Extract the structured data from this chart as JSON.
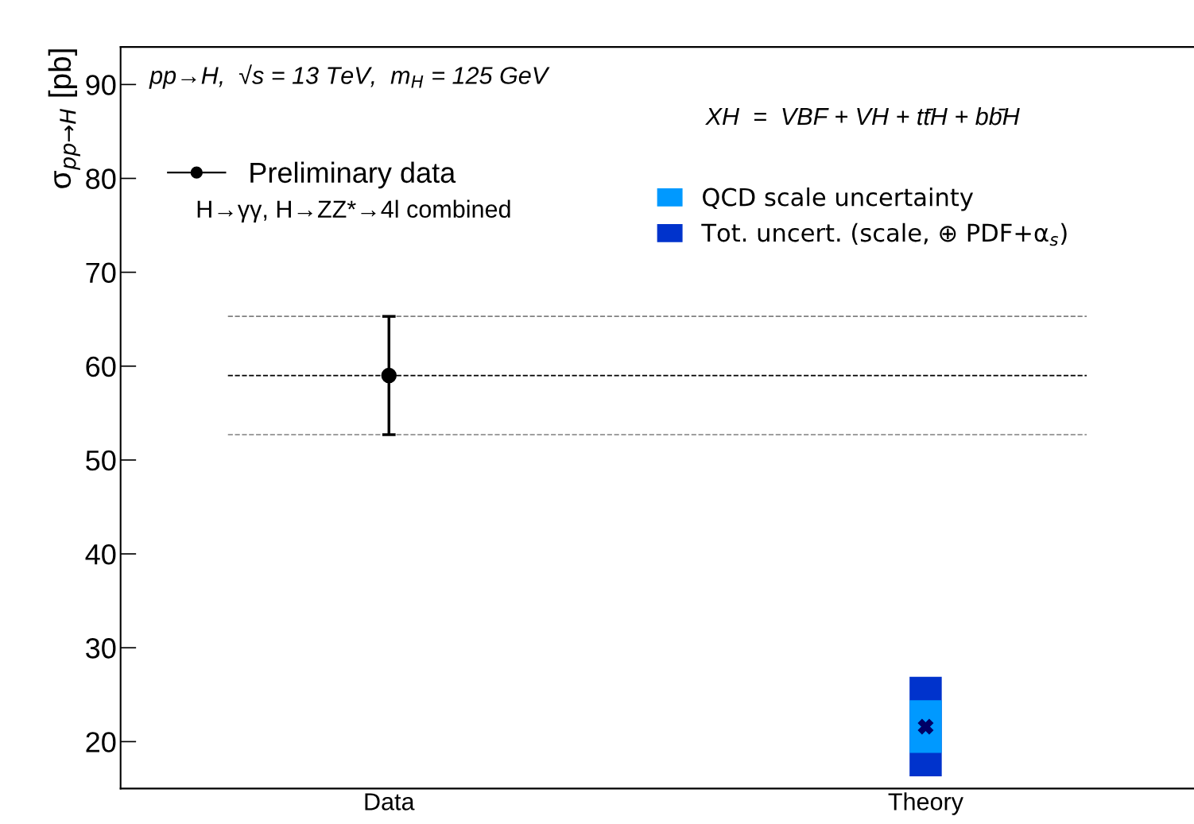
{
  "chart_data": {
    "type": "scatter",
    "categories": [
      "Data",
      "Theory"
    ],
    "ylabel": "σ$_{pp→H}$ [pb]",
    "ylim": [
      15,
      94
    ],
    "yticks": [
      20,
      30,
      40,
      50,
      60,
      70,
      80,
      90
    ],
    "grid": false,
    "legend": "top",
    "series": [
      {
        "type": "bar",
        "name": "Tot. uncert. (scale, ⊕ PDF+α$_{s}$)",
        "color": "#0033cc",
        "base": [
          null,
          16.3
        ],
        "values": [
          null,
          10.6
        ]
      },
      {
        "type": "bar",
        "name": "QCD scale uncertainty",
        "color": "#0099ff",
        "base": [
          null,
          18.8
        ],
        "values": [
          null,
          5.6
        ]
      },
      {
        "color": "#000066",
        "marker": "cross",
        "values": [
          null,
          21.6
        ]
      },
      {
        "type": "scatter",
        "name": "Preliminary data",
        "color": "#000000",
        "marker": "circle",
        "values": [
          59.0,
          null
        ],
        "errors": [
          [
            52.7,
            65.3
          ],
          null
        ]
      }
    ],
    "ref_lines": [
      {
        "axis": "y",
        "value": 65.3,
        "color": "#808080",
        "line_style": "dashed"
      },
      {
        "axis": "y",
        "value": 59.0,
        "color": "#000000",
        "line_style": "dashed"
      },
      {
        "axis": "y",
        "value": 52.7,
        "color": "#808080",
        "line_style": "dashed"
      }
    ],
    "annotations": [
      "pp→H,  √s = 13 TeV,  m$_{H}$ = 125 GeV",
      "H→γγ, H→ZZ*→4l combined",
      "XH  =  VBF + VH + tt̄H + bb̄H"
    ]
  }
}
